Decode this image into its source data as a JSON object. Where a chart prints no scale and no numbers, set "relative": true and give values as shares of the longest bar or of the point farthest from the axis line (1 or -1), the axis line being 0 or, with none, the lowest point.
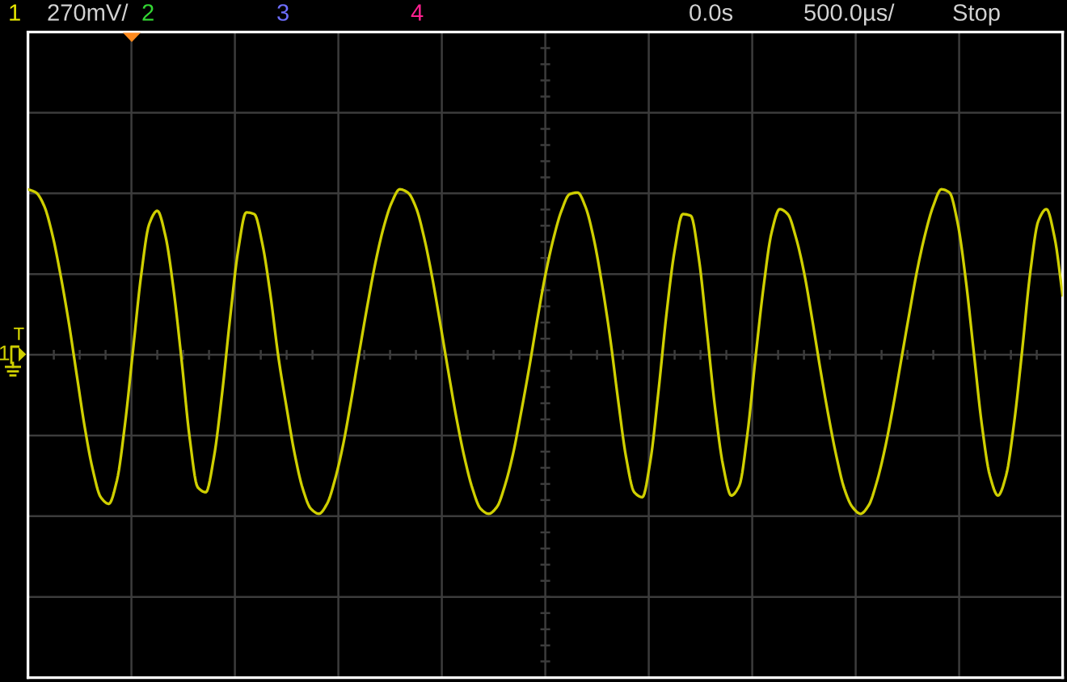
{
  "chart_data": {
    "type": "line",
    "relative": true,
    "grid": true,
    "line_style": "solid",
    "categories": [
      null,
      null,
      null,
      null,
      null,
      null,
      null,
      null,
      null,
      null,
      null,
      null,
      null,
      null,
      null,
      null,
      null,
      null,
      null,
      null,
      null,
      null,
      null,
      null,
      null,
      null,
      null,
      null,
      null,
      null,
      null,
      null,
      null,
      null,
      null,
      null,
      null,
      null,
      null,
      null,
      null,
      null,
      null,
      null,
      null,
      null,
      null,
      null,
      null,
      null,
      null,
      null,
      null,
      null,
      null,
      null,
      null,
      null,
      null,
      null,
      null,
      null,
      null,
      null,
      null,
      null,
      null,
      null,
      null,
      null,
      null,
      null,
      null,
      null,
      null,
      null,
      null,
      null,
      null,
      null,
      null,
      null,
      null,
      null,
      null,
      null,
      null,
      null,
      null,
      null,
      null,
      null,
      null,
      null,
      null,
      null,
      null,
      null,
      null,
      null,
      null,
      null,
      null,
      null,
      null,
      null,
      null,
      null,
      null,
      null,
      null,
      null,
      null,
      null,
      null,
      null,
      null,
      null,
      null,
      null,
      null,
      null,
      null,
      null,
      null,
      null,
      null,
      null,
      null
    ],
    "series": [
      {
        "name": "1",
        "color": "#cfcf00",
        "values": [
          1.0,
          0.98,
          0.9,
          0.73,
          0.49,
          0.21,
          -0.11,
          -0.43,
          -0.69,
          -0.86,
          -0.9,
          -0.76,
          -0.42,
          0.03,
          0.48,
          0.79,
          0.87,
          0.72,
          0.4,
          -0.03,
          -0.5,
          -0.8,
          -0.83,
          -0.62,
          -0.24,
          0.22,
          0.63,
          0.86,
          0.85,
          0.67,
          0.36,
          -0.02,
          -0.32,
          -0.6,
          -0.81,
          -0.93,
          -0.96,
          -0.9,
          -0.75,
          -0.54,
          -0.27,
          0.02,
          0.3,
          0.56,
          0.77,
          0.92,
          1.0,
          0.98,
          0.89,
          0.71,
          0.47,
          0.19,
          -0.1,
          -0.38,
          -0.62,
          -0.81,
          -0.93,
          -0.96,
          -0.92,
          -0.79,
          -0.6,
          -0.35,
          -0.08,
          0.21,
          0.48,
          0.7,
          0.87,
          0.97,
          0.98,
          0.89,
          0.7,
          0.43,
          0.11,
          -0.27,
          -0.62,
          -0.83,
          -0.86,
          -0.64,
          -0.22,
          0.25,
          0.63,
          0.85,
          0.84,
          0.58,
          0.14,
          -0.32,
          -0.67,
          -0.85,
          -0.79,
          -0.48,
          -0.02,
          0.41,
          0.74,
          0.88,
          0.85,
          0.71,
          0.5,
          0.22,
          -0.08,
          -0.36,
          -0.61,
          -0.81,
          -0.92,
          -0.96,
          -0.91,
          -0.77,
          -0.57,
          -0.32,
          -0.04,
          0.24,
          0.51,
          0.73,
          0.9,
          1.0,
          0.98,
          0.8,
          0.46,
          0.02,
          -0.42,
          -0.73,
          -0.85,
          -0.73,
          -0.41,
          0.03,
          0.5,
          0.81,
          0.88,
          0.71,
          0.36
        ]
      }
    ],
    "annotations": [
      "1",
      "270mV/",
      "2",
      "3",
      "4",
      "0.0s",
      "500.0µs/",
      "Stop",
      "T"
    ]
  }
}
